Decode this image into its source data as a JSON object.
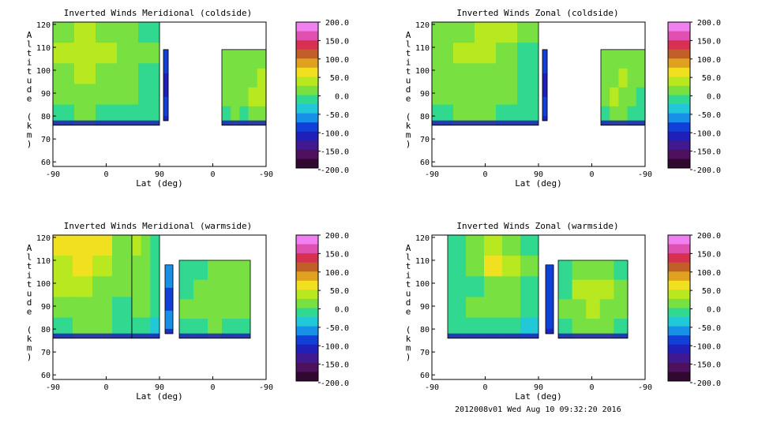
{
  "colorbar": {
    "ticks": [
      "200.0",
      "150.0",
      "100.0",
      "50.0",
      "0.0",
      "-50.0",
      "-100.0",
      "-150.0",
      "-200.0"
    ],
    "colors": [
      "#f080f0",
      "#e050b0",
      "#d83050",
      "#c06028",
      "#e0a020",
      "#f0e020",
      "#b8e820",
      "#78e040",
      "#30d890",
      "#20c8d8",
      "#1890e8",
      "#1040d8",
      "#2020b8",
      "#401890",
      "#501060",
      "#300830"
    ]
  },
  "footer": "2012008v01 Wed Aug 10 09:32:20 2016",
  "chart_data": [
    {
      "type": "heatmap",
      "title": "Inverted Winds Meridional (coldside)",
      "xlabel": "Lat (deg)",
      "ylabel": "Altitude (km)",
      "xticks": [
        "-90",
        "0",
        "90",
        "0",
        "-90"
      ],
      "yticks": [
        "60",
        "70",
        "80",
        "90",
        "100",
        "110",
        "120"
      ],
      "ylim": [
        58,
        121
      ],
      "clim": [
        -200,
        200
      ],
      "blocks": [
        {
          "x": [
            -90,
            45
          ],
          "y": [
            76,
            121
          ],
          "values": [
            [
              10,
              30,
              20,
              10,
              -5
            ],
            [
              25,
              45,
              35,
              15,
              0
            ],
            [
              15,
              35,
              20,
              5,
              -10
            ],
            [
              5,
              15,
              10,
              0,
              -15
            ],
            [
              -10,
              0,
              -5,
              -10,
              -25
            ]
          ]
        },
        {
          "x": [
            50,
            56
          ],
          "y": [
            78,
            109
          ],
          "values": [
            [
              -90
            ],
            [
              -110
            ],
            [
              -90
            ]
          ]
        },
        {
          "x": [
            124,
            180
          ],
          "y": [
            76,
            109
          ],
          "values": [
            [
              0,
              10,
              5,
              10,
              15
            ],
            [
              5,
              20,
              10,
              15,
              30
            ],
            [
              0,
              15,
              5,
              25,
              40
            ],
            [
              -10,
              0,
              -5,
              5,
              10
            ]
          ]
        }
      ]
    },
    {
      "type": "heatmap",
      "title": "Inverted Winds Zonal (coldside)",
      "xlabel": "Lat (deg)",
      "ylabel": "Altitude (km)",
      "xticks": [
        "-90",
        "0",
        "90",
        "0",
        "-90"
      ],
      "yticks": [
        "60",
        "70",
        "80",
        "90",
        "100",
        "110",
        "120"
      ],
      "ylim": [
        58,
        121
      ],
      "clim": [
        -200,
        200
      ],
      "blocks": [
        {
          "x": [
            -90,
            45
          ],
          "y": [
            76,
            121
          ],
          "values": [
            [
              5,
              20,
              40,
              25,
              0
            ],
            [
              10,
              25,
              30,
              15,
              -5
            ],
            [
              0,
              10,
              15,
              5,
              -10
            ],
            [
              5,
              15,
              20,
              10,
              -15
            ],
            [
              -10,
              0,
              5,
              -5,
              -25
            ]
          ]
        },
        {
          "x": [
            50,
            56
          ],
          "y": [
            78,
            109
          ],
          "values": [
            [
              -100
            ],
            [
              -120
            ],
            [
              -100
            ]
          ]
        },
        {
          "x": [
            124,
            180
          ],
          "y": [
            76,
            109
          ],
          "values": [
            [
              0,
              5,
              15,
              5,
              0
            ],
            [
              5,
              20,
              25,
              10,
              5
            ],
            [
              10,
              25,
              20,
              0,
              -10
            ],
            [
              -5,
              5,
              0,
              -10,
              -20
            ]
          ]
        }
      ]
    },
    {
      "type": "heatmap",
      "title": "Inverted Winds Meridional (warmside)",
      "xlabel": "Lat (deg)",
      "ylabel": "Altitude (km)",
      "xticks": [
        "-90",
        "0",
        "90",
        "0",
        "-90"
      ],
      "yticks": [
        "60",
        "70",
        "80",
        "90",
        "100",
        "110",
        "120"
      ],
      "ylim": [
        58,
        121
      ],
      "clim": [
        -200,
        200
      ],
      "blocks": [
        {
          "x": [
            -90,
            10
          ],
          "y": [
            76,
            121
          ],
          "values": [
            [
              60,
              70,
              50,
              20
            ],
            [
              45,
              55,
              40,
              10
            ],
            [
              30,
              35,
              20,
              0
            ],
            [
              10,
              20,
              15,
              -10
            ],
            [
              -10,
              0,
              5,
              -15
            ]
          ]
        },
        {
          "x": [
            10,
            45
          ],
          "y": [
            76,
            121
          ],
          "values": [
            [
              30,
              15,
              -15
            ],
            [
              20,
              10,
              -20
            ],
            [
              10,
              5,
              -20
            ],
            [
              5,
              0,
              -25
            ],
            [
              -10,
              -15,
              -30
            ]
          ]
        },
        {
          "x": [
            52,
            62
          ],
          "y": [
            78,
            108
          ],
          "values": [
            [
              -70
            ],
            [
              -90
            ],
            [
              -70
            ]
          ]
        },
        {
          "x": [
            70,
            160
          ],
          "y": [
            76,
            110
          ],
          "values": [
            [
              -20,
              -10,
              0,
              5,
              10
            ],
            [
              -10,
              5,
              10,
              20,
              15
            ],
            [
              0,
              15,
              20,
              10,
              5
            ],
            [
              -15,
              -5,
              0,
              -5,
              -10
            ]
          ]
        }
      ]
    },
    {
      "type": "heatmap",
      "title": "Inverted Winds Zonal (warmside)",
      "xlabel": "Lat (deg)",
      "ylabel": "Altitude (km)",
      "xticks": [
        "-90",
        "0",
        "90",
        "0",
        "-90"
      ],
      "yticks": [
        "60",
        "70",
        "80",
        "90",
        "100",
        "110",
        "120"
      ],
      "ylim": [
        58,
        121
      ],
      "clim": [
        -200,
        200
      ],
      "blocks": [
        {
          "x": [
            -70,
            45
          ],
          "y": [
            76,
            121
          ],
          "values": [
            [
              -20,
              10,
              40,
              20,
              -10
            ],
            [
              -10,
              5,
              60,
              30,
              0
            ],
            [
              -20,
              -10,
              10,
              15,
              -5
            ],
            [
              -10,
              0,
              5,
              0,
              -15
            ],
            [
              -25,
              -15,
              -10,
              -15,
              -30
            ]
          ]
        },
        {
          "x": [
            54,
            64
          ],
          "y": [
            78,
            108
          ],
          "values": [
            [
              -80
            ],
            [
              -100
            ],
            [
              -80
            ]
          ]
        },
        {
          "x": [
            70,
            158
          ],
          "y": [
            76,
            110
          ],
          "values": [
            [
              -20,
              0,
              10,
              5,
              -5
            ],
            [
              -5,
              25,
              35,
              30,
              10
            ],
            [
              0,
              20,
              25,
              20,
              5
            ],
            [
              -10,
              10,
              15,
              5,
              -10
            ]
          ]
        }
      ]
    }
  ]
}
